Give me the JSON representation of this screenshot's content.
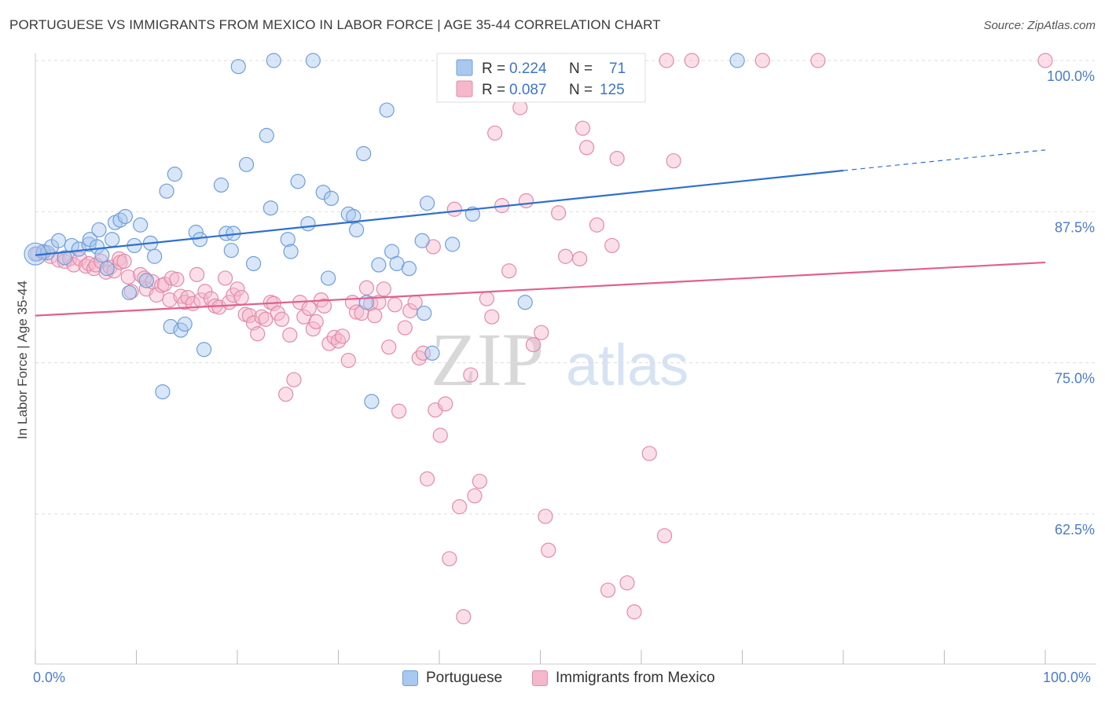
{
  "title": "PORTUGUESE VS IMMIGRANTS FROM MEXICO IN LABOR FORCE | AGE 35-44 CORRELATION CHART",
  "source": "Source: ZipAtlas.com",
  "watermark": {
    "zip": "ZIP",
    "atlas": "atlas"
  },
  "colors": {
    "blue_fill": "#a9c8ef",
    "blue_stroke": "#6f9fd8",
    "blue_line": "#2f6fcf",
    "pink_fill": "#f5b8cb",
    "pink_stroke": "#e48aa8",
    "pink_line": "#e0608e",
    "tick_label": "#4a7bd0",
    "grid": "#dddddd"
  },
  "legend": {
    "rows": [
      {
        "r_label": "R =",
        "r_value": "0.224",
        "n_label": "N =",
        "n_value": "71"
      },
      {
        "r_label": "R =",
        "r_value": "0.087",
        "n_label": "N =",
        "n_value": "125"
      }
    ],
    "bottom": [
      "Portuguese",
      "Immigrants from Mexico"
    ]
  },
  "chart_data": {
    "type": "scatter",
    "title": "PORTUGUESE VS IMMIGRANTS FROM MEXICO IN LABOR FORCE | AGE 35-44 CORRELATION CHART",
    "xlabel": "",
    "ylabel": "In Labor Force | Age 35-44",
    "xlim": [
      0,
      100
    ],
    "ylim": [
      51,
      101
    ],
    "x_tick_labels": [
      "0.0%",
      "100.0%"
    ],
    "y_ticks": [
      62.5,
      75.0,
      87.5,
      100.0
    ],
    "y_tick_labels": [
      "62.5%",
      "75.0%",
      "87.5%",
      "100.0%"
    ],
    "grid": true,
    "legend_position": "top-center",
    "series": [
      {
        "name": "Portuguese",
        "r": 0.224,
        "n": 71,
        "trend": {
          "x0": 0,
          "y0": 83.9,
          "x1": 80,
          "y1": 90.9,
          "dashed_to_x": 100,
          "dashed_to_y": 92.6
        },
        "points": [
          [
            0,
            84.0
          ],
          [
            0.8,
            84.2
          ],
          [
            1.2,
            84.1
          ],
          [
            1.6,
            84.6
          ],
          [
            2.3,
            85.1
          ],
          [
            2.9,
            83.7
          ],
          [
            3.6,
            84.7
          ],
          [
            4.3,
            84.4
          ],
          [
            5.3,
            84.8
          ],
          [
            5.4,
            85.2
          ],
          [
            6.1,
            84.6
          ],
          [
            6.3,
            86.0
          ],
          [
            6.6,
            83.9
          ],
          [
            7.1,
            82.8
          ],
          [
            7.6,
            85.2
          ],
          [
            7.9,
            86.6
          ],
          [
            8.4,
            86.8
          ],
          [
            8.9,
            87.1
          ],
          [
            9.3,
            80.8
          ],
          [
            9.8,
            84.7
          ],
          [
            10.4,
            86.4
          ],
          [
            11.0,
            81.8
          ],
          [
            11.4,
            84.9
          ],
          [
            11.8,
            83.8
          ],
          [
            12.6,
            72.6
          ],
          [
            13.0,
            89.2
          ],
          [
            13.4,
            78.0
          ],
          [
            13.8,
            90.6
          ],
          [
            14.4,
            77.7
          ],
          [
            14.8,
            78.2
          ],
          [
            15.9,
            85.8
          ],
          [
            16.3,
            85.2
          ],
          [
            16.7,
            76.1
          ],
          [
            18.4,
            89.7
          ],
          [
            18.9,
            85.7
          ],
          [
            19.4,
            84.3
          ],
          [
            19.6,
            85.7
          ],
          [
            20.1,
            99.5
          ],
          [
            20.9,
            91.4
          ],
          [
            21.6,
            83.2
          ],
          [
            22.9,
            93.8
          ],
          [
            23.3,
            87.8
          ],
          [
            23.6,
            100
          ],
          [
            25.0,
            85.2
          ],
          [
            25.3,
            84.2
          ],
          [
            26.0,
            90.0
          ],
          [
            27.0,
            86.5
          ],
          [
            27.5,
            100
          ],
          [
            28.5,
            89.1
          ],
          [
            29.0,
            82.0
          ],
          [
            29.3,
            88.6
          ],
          [
            31.0,
            87.3
          ],
          [
            31.5,
            87.1
          ],
          [
            31.8,
            86.0
          ],
          [
            32.5,
            92.3
          ],
          [
            32.8,
            80.0
          ],
          [
            33.3,
            71.8
          ],
          [
            34.0,
            83.1
          ],
          [
            34.8,
            95.9
          ],
          [
            35.3,
            84.2
          ],
          [
            35.8,
            83.2
          ],
          [
            37.0,
            82.8
          ],
          [
            38.3,
            85.1
          ],
          [
            38.5,
            79.1
          ],
          [
            38.8,
            88.2
          ],
          [
            39.3,
            75.8
          ],
          [
            41.3,
            84.8
          ],
          [
            43.3,
            87.3
          ],
          [
            48.5,
            80.0
          ],
          [
            52.0,
            100
          ],
          [
            69.5,
            100
          ]
        ]
      },
      {
        "name": "Immigrants from Mexico",
        "r": 0.087,
        "n": 125,
        "trend": {
          "x0": 0,
          "y0": 78.9,
          "x1": 100,
          "y1": 83.3
        },
        "points": [
          [
            0.2,
            84.0
          ],
          [
            0.8,
            84.1
          ],
          [
            1.5,
            83.8
          ],
          [
            2.3,
            83.5
          ],
          [
            2.9,
            83.4
          ],
          [
            3.4,
            83.6
          ],
          [
            3.8,
            83.1
          ],
          [
            4.4,
            83.6
          ],
          [
            5.0,
            83.0
          ],
          [
            5.3,
            83.2
          ],
          [
            5.8,
            82.8
          ],
          [
            6.0,
            83.1
          ],
          [
            6.5,
            83.4
          ],
          [
            7.0,
            82.5
          ],
          [
            7.4,
            82.9
          ],
          [
            7.8,
            82.6
          ],
          [
            8.3,
            83.6
          ],
          [
            8.4,
            83.3
          ],
          [
            8.8,
            83.4
          ],
          [
            9.2,
            82.1
          ],
          [
            9.5,
            80.9
          ],
          [
            10.4,
            82.3
          ],
          [
            10.8,
            82.0
          ],
          [
            11.0,
            81.1
          ],
          [
            11.6,
            81.7
          ],
          [
            12.0,
            80.6
          ],
          [
            12.5,
            81.4
          ],
          [
            12.8,
            81.5
          ],
          [
            13.3,
            80.2
          ],
          [
            13.5,
            82.0
          ],
          [
            14.0,
            81.9
          ],
          [
            14.4,
            80.5
          ],
          [
            14.8,
            80.0
          ],
          [
            15.1,
            80.4
          ],
          [
            15.6,
            79.9
          ],
          [
            16.0,
            82.3
          ],
          [
            16.4,
            80.2
          ],
          [
            16.8,
            80.9
          ],
          [
            17.4,
            80.3
          ],
          [
            17.8,
            79.7
          ],
          [
            18.2,
            79.6
          ],
          [
            18.8,
            82.0
          ],
          [
            19.2,
            80.0
          ],
          [
            19.6,
            80.6
          ],
          [
            20.0,
            81.1
          ],
          [
            20.4,
            80.4
          ],
          [
            20.8,
            79.0
          ],
          [
            21.2,
            78.9
          ],
          [
            21.6,
            78.3
          ],
          [
            22.0,
            77.4
          ],
          [
            22.4,
            78.8
          ],
          [
            22.8,
            78.6
          ],
          [
            23.3,
            80.0
          ],
          [
            23.6,
            79.9
          ],
          [
            24.0,
            79.1
          ],
          [
            24.4,
            78.6
          ],
          [
            24.8,
            72.4
          ],
          [
            25.2,
            77.3
          ],
          [
            25.6,
            73.6
          ],
          [
            26.2,
            80.0
          ],
          [
            26.6,
            78.8
          ],
          [
            27.1,
            79.5
          ],
          [
            27.5,
            77.8
          ],
          [
            27.8,
            78.4
          ],
          [
            28.3,
            80.2
          ],
          [
            28.6,
            79.7
          ],
          [
            29.1,
            76.6
          ],
          [
            29.6,
            77.1
          ],
          [
            30.0,
            76.8
          ],
          [
            30.4,
            77.2
          ],
          [
            31.0,
            75.2
          ],
          [
            31.4,
            80.0
          ],
          [
            31.8,
            79.2
          ],
          [
            32.3,
            79.1
          ],
          [
            32.8,
            81.2
          ],
          [
            33.2,
            79.9
          ],
          [
            33.6,
            78.9
          ],
          [
            34.0,
            80.0
          ],
          [
            34.5,
            81.1
          ],
          [
            35.0,
            76.3
          ],
          [
            35.6,
            79.8
          ],
          [
            36.0,
            71.0
          ],
          [
            36.6,
            77.9
          ],
          [
            37.1,
            79.3
          ],
          [
            37.6,
            80.0
          ],
          [
            38.0,
            75.4
          ],
          [
            38.4,
            75.8
          ],
          [
            38.8,
            65.4
          ],
          [
            39.4,
            84.6
          ],
          [
            39.6,
            71.1
          ],
          [
            40.1,
            69.0
          ],
          [
            40.6,
            71.6
          ],
          [
            41.0,
            58.8
          ],
          [
            41.5,
            87.7
          ],
          [
            42.0,
            63.1
          ],
          [
            42.4,
            54.0
          ],
          [
            43.1,
            74.0
          ],
          [
            43.5,
            64.0
          ],
          [
            44.0,
            65.2
          ],
          [
            44.7,
            80.3
          ],
          [
            45.2,
            78.8
          ],
          [
            45.5,
            94.0
          ],
          [
            46.2,
            88.0
          ],
          [
            46.9,
            82.6
          ],
          [
            47.4,
            99.7
          ],
          [
            48.0,
            96.1
          ],
          [
            48.6,
            88.4
          ],
          [
            49.3,
            76.5
          ],
          [
            50.1,
            77.5
          ],
          [
            50.5,
            62.3
          ],
          [
            50.8,
            59.5
          ],
          [
            51.3,
            97.3
          ],
          [
            51.8,
            87.4
          ],
          [
            52.5,
            83.8
          ],
          [
            53.9,
            83.6
          ],
          [
            54.2,
            94.4
          ],
          [
            54.6,
            92.8
          ],
          [
            55.6,
            86.4
          ],
          [
            56.7,
            56.2
          ],
          [
            57.1,
            84.7
          ],
          [
            57.6,
            91.9
          ],
          [
            58.6,
            56.8
          ],
          [
            59.3,
            54.4
          ],
          [
            60.8,
            67.5
          ],
          [
            62.3,
            60.7
          ],
          [
            63.2,
            91.7
          ],
          [
            65.0,
            100
          ],
          [
            72.0,
            100
          ],
          [
            77.5,
            100
          ],
          [
            100,
            100
          ],
          [
            62.5,
            100
          ]
        ]
      }
    ]
  }
}
